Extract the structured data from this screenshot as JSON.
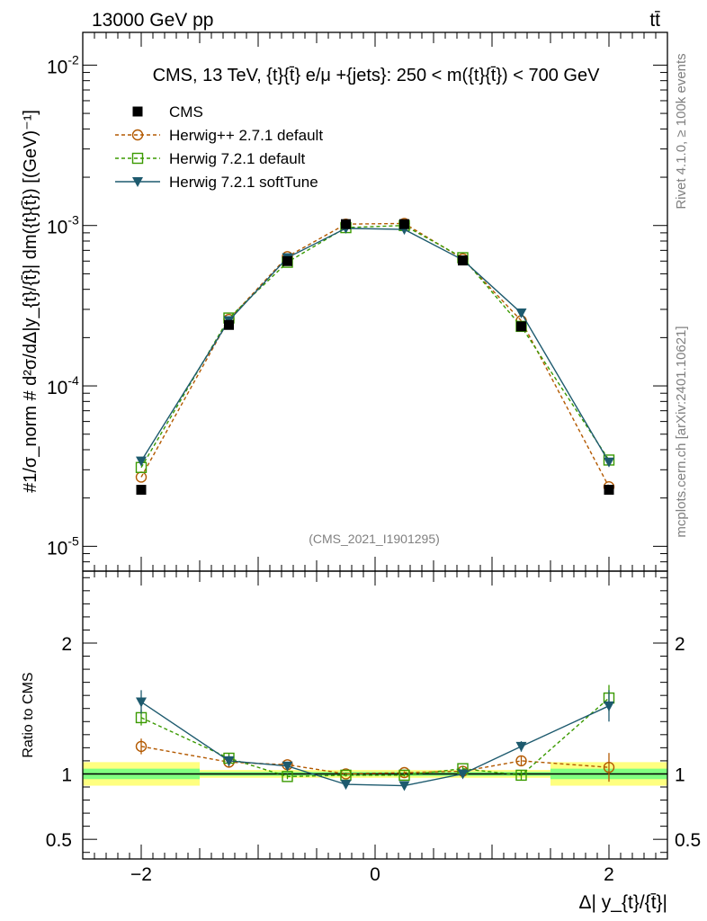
{
  "header": {
    "left": "13000 GeV pp",
    "right": "tt̄"
  },
  "side_labels": {
    "rivet": "Rivet 4.1.0, ≥ 100k events",
    "mcplots": "mcplots.cern.ch [arXiv:2401.10621]"
  },
  "chart_data": [
    {
      "type": "line",
      "title": "CMS, 13 TeV, {t}{t̄} e/μ +{jets}: 250 < m({t}{t̄}) < 700 GeV",
      "analysis_id": "(CMS_2021_I1901295)",
      "ylabel": "#1/σ_norm # d²σ/dΔ|y_{t}/{t̄}| dm({t}{t̄}) [(GeV)⁻¹]",
      "xlabel": "Δ| y_{t}/{t̄}|",
      "yscale": "log",
      "ylim": [
        7e-06,
        0.016
      ],
      "xlim": [
        -2.5,
        2.5
      ],
      "yticks": [
        {
          "label": "10",
          "exp": "-2",
          "value": 0.01
        },
        {
          "label": "10",
          "exp": "-3",
          "value": 0.001
        },
        {
          "label": "10",
          "exp": "-4",
          "value": 0.0001
        },
        {
          "label": "10",
          "exp": "-5",
          "value": 1e-05
        }
      ],
      "x": [
        -2.0,
        -1.25,
        -0.75,
        -0.25,
        0.25,
        0.75,
        1.25,
        2.0
      ],
      "bin_edges": [
        -2.5,
        -1.5,
        -1.0,
        -0.5,
        0.0,
        0.5,
        1.0,
        1.5,
        2.5
      ],
      "legend": {
        "placement": "top-left",
        "entries": [
          "CMS",
          "Herwig++ 2.7.1 default",
          "Herwig 7.2.1 default",
          "Herwig 7.2.1 softTune"
        ]
      },
      "series": [
        {
          "name": "CMS",
          "color": "#000000",
          "marker": "square-filled",
          "values": [
            2.25e-05,
            0.00024,
            0.0006,
            0.00102,
            0.00102,
            0.000605,
            0.000235,
            2.25e-05
          ]
        },
        {
          "name": "Herwig++ 2.7.1 default",
          "color": "#b35900",
          "marker": "circle-open",
          "dash": "4,3",
          "values": [
            2.7e-05,
            0.00026,
            0.00064,
            0.00102,
            0.00103,
            0.00062,
            0.000255,
            2.35e-05
          ]
        },
        {
          "name": "Herwig 7.2.1 default",
          "color": "#3a9a00",
          "marker": "square-open",
          "dash": "4,3",
          "values": [
            3.1e-05,
            0.000265,
            0.00059,
            0.00097,
            0.001,
            0.00063,
            0.000235,
            3.45e-05
          ]
        },
        {
          "name": "Herwig 7.2.1 softTune",
          "color": "#1d5a6e",
          "marker": "triangle-down-filled",
          "values": [
            3.4e-05,
            0.000255,
            0.00063,
            0.00096,
            0.000945,
            0.00061,
            0.000285,
            3.35e-05
          ]
        }
      ]
    },
    {
      "type": "line",
      "ylabel": "Ratio to CMS",
      "xlabel": "Δ| y_{t}/{t̄}|",
      "ylim": [
        0.35,
        2.55
      ],
      "xlim": [
        -2.5,
        2.5
      ],
      "yticks_left": [
        "0.5",
        "1",
        "2"
      ],
      "yticks_right": [
        "0.5",
        "1",
        "2"
      ],
      "xticks": [
        "−2",
        "0",
        "2"
      ],
      "band_edges": [
        -2.5,
        -1.5,
        -1.0,
        -0.5,
        0.0,
        0.5,
        1.0,
        1.5,
        2.5
      ],
      "band_inner": [
        0.04,
        0.015,
        0.015,
        0.015,
        0.015,
        0.015,
        0.015,
        0.04
      ],
      "band_outer": [
        0.09,
        0.03,
        0.03,
        0.03,
        0.03,
        0.03,
        0.03,
        0.09
      ],
      "x": [
        -2.0,
        -1.25,
        -0.75,
        -0.25,
        0.25,
        0.75,
        1.25,
        2.0
      ],
      "series": [
        {
          "name": "Herwig++ 2.7.1 default",
          "color": "#b35900",
          "marker": "circle-open",
          "dash": "4,3",
          "values": [
            1.21,
            1.09,
            1.07,
            1.0,
            1.01,
            1.02,
            1.1,
            1.05
          ],
          "err": [
            0.06,
            0.04,
            0.02,
            0.01,
            0.01,
            0.02,
            0.04,
            0.11
          ]
        },
        {
          "name": "Herwig 7.2.1 default",
          "color": "#3a9a00",
          "marker": "square-open",
          "dash": "4,3",
          "values": [
            1.43,
            1.12,
            0.98,
            0.99,
            0.99,
            1.04,
            0.99,
            1.58
          ],
          "err": [
            0.06,
            0.04,
            0.02,
            0.01,
            0.01,
            0.02,
            0.04,
            0.1
          ]
        },
        {
          "name": "Herwig 7.2.1 softTune",
          "color": "#1d5a6e",
          "marker": "triangle-down-filled",
          "values": [
            1.55,
            1.1,
            1.06,
            0.92,
            0.91,
            1.0,
            1.21,
            1.52
          ],
          "err": [
            0.09,
            0.04,
            0.02,
            0.01,
            0.01,
            0.02,
            0.04,
            0.12
          ]
        }
      ]
    }
  ]
}
